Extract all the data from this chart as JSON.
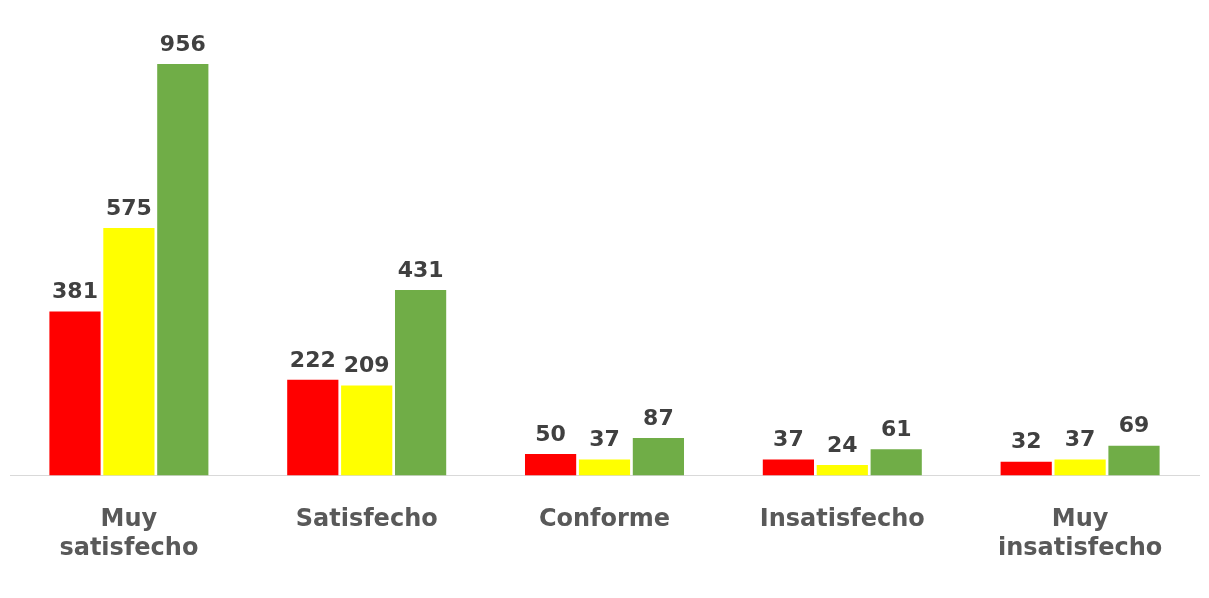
{
  "chart_data": {
    "type": "bar",
    "categories": [
      "Muy satisfecho",
      "Satisfecho",
      "Conforme",
      "Insatisfecho",
      "Muy insatisfecho"
    ],
    "series": [
      {
        "color": "#ff0000",
        "values": [
          381,
          222,
          50,
          37,
          32
        ]
      },
      {
        "color": "#ffff00",
        "values": [
          575,
          209,
          37,
          24,
          37
        ]
      },
      {
        "color": "#70ad47",
        "values": [
          956,
          431,
          87,
          61,
          69
        ]
      }
    ],
    "data_labels": true,
    "grid": false,
    "legend": false
  }
}
